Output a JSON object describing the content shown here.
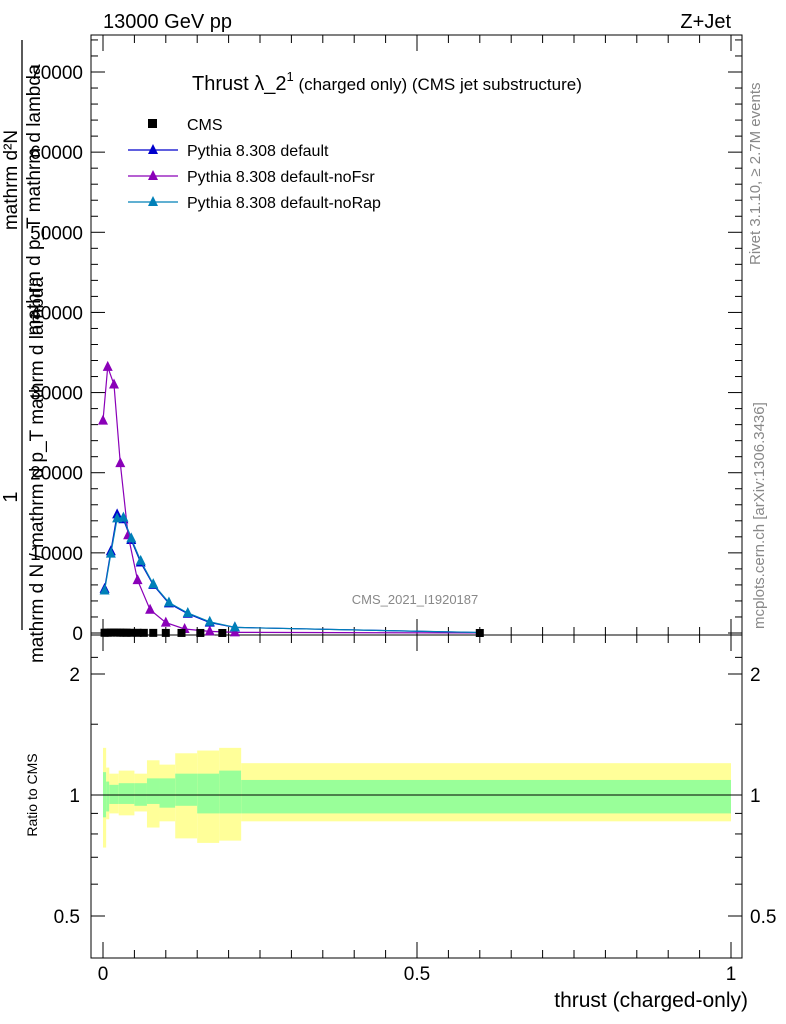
{
  "header": {
    "left": "13000 GeV pp",
    "right": "Z+Jet"
  },
  "title": {
    "main": "Thrust λ_2",
    "sup": "1",
    "rest": " (charged only) (CMS jet substructure)"
  },
  "side_labels": {
    "top": "Rivet 3.1.10, ≥ 2.7M events",
    "bottom": "mcplots.cern.ch [arXiv:1306.3436]"
  },
  "watermark": "CMS_2021_I1920187",
  "main_ylabel": {
    "numerator": "1",
    "fraction_top": "mathrm d²N",
    "fraction_bottom": "mathrm d p_T mathrm d lambda",
    "denominator": "mathrm d N / mathrm d p_T mathrm d lambda"
  },
  "ratio_ylabel": "Ratio to CMS",
  "xlabel": "thrust (charged-only)",
  "legend": [
    {
      "label": "CMS",
      "marker": "square",
      "color": "#000000"
    },
    {
      "label": "Pythia 8.308 default",
      "marker": "triangle",
      "color": "#0000cc"
    },
    {
      "label": "Pythia 8.308 default-noFsr",
      "marker": "triangle",
      "color": "#8a00b8"
    },
    {
      "label": "Pythia 8.308 default-noRap",
      "marker": "triangle",
      "color": "#0080b8"
    }
  ],
  "chart_data": {
    "type": "line",
    "x_axis": {
      "range": [
        -0.02,
        1.0
      ],
      "ticks": [
        0,
        0.5,
        1
      ],
      "tick_labels": [
        "0",
        "0.5",
        "1"
      ]
    },
    "main_y_axis": {
      "range": [
        0,
        75000
      ],
      "ticks": [
        0,
        10000,
        20000,
        30000,
        40000,
        50000,
        60000,
        70000
      ],
      "tick_labels": [
        "0",
        "10000",
        "20000",
        "30000",
        "40000",
        "50000",
        "60000",
        "70000"
      ]
    },
    "ratio_y_axis": {
      "scale": "log",
      "range": [
        0.4,
        2.4
      ],
      "ticks": [
        0.5,
        1,
        2
      ],
      "tick_labels": [
        "0.5",
        "1",
        "2"
      ]
    },
    "cms": {
      "x": [
        0.0025,
        0.0075,
        0.0125,
        0.0175,
        0.0225,
        0.0275,
        0.0325,
        0.0375,
        0.045,
        0.055,
        0.065,
        0.08,
        0.1,
        0.125,
        0.155,
        0.19,
        0.6
      ],
      "y": [
        30,
        40,
        50,
        60,
        50,
        45,
        40,
        35,
        30,
        25,
        20,
        15,
        10,
        8,
        5,
        3,
        1
      ]
    },
    "series": [
      {
        "name": "Pythia 8.308 default",
        "color": "#0000cc",
        "x": [
          0.0025,
          0.0125,
          0.0225,
          0.0325,
          0.045,
          0.06,
          0.08,
          0.105,
          0.135,
          0.17,
          0.21,
          0.6
        ],
        "y": [
          5500,
          10200,
          14800,
          14200,
          11600,
          8800,
          6000,
          3700,
          2400,
          1300,
          700,
          50
        ]
      },
      {
        "name": "Pythia 8.308 default-noFsr",
        "color": "#8a00b8",
        "x": [
          0.0,
          0.0075,
          0.0175,
          0.0275,
          0.04,
          0.055,
          0.075,
          0.1,
          0.13,
          0.17,
          0.21,
          0.6
        ],
        "y": [
          26500,
          33200,
          31000,
          21200,
          12200,
          6600,
          2900,
          1300,
          500,
          200,
          80,
          5
        ]
      },
      {
        "name": "Pythia 8.308 default-noRap",
        "color": "#0080b8",
        "x": [
          0.0025,
          0.0125,
          0.0225,
          0.0325,
          0.045,
          0.06,
          0.08,
          0.105,
          0.135,
          0.17,
          0.21,
          0.6
        ],
        "y": [
          5300,
          9900,
          14300,
          14400,
          11800,
          9000,
          6100,
          3800,
          2500,
          1400,
          700,
          60
        ]
      }
    ],
    "ratio_bands": {
      "edges": [
        0.0,
        0.005,
        0.01,
        0.025,
        0.05,
        0.07,
        0.09,
        0.115,
        0.15,
        0.185,
        0.22,
        1.0
      ],
      "stat_low": [
        0.88,
        0.91,
        0.95,
        0.95,
        0.94,
        0.95,
        0.93,
        0.94,
        0.9,
        0.9,
        0.9
      ],
      "stat_high": [
        1.14,
        1.08,
        1.06,
        1.07,
        1.07,
        1.1,
        1.1,
        1.13,
        1.13,
        1.15,
        1.09
      ],
      "total_low": [
        0.74,
        0.87,
        0.9,
        0.89,
        0.91,
        0.83,
        0.86,
        0.78,
        0.76,
        0.77,
        0.86
      ],
      "total_high": [
        1.31,
        1.17,
        1.13,
        1.15,
        1.13,
        1.22,
        1.19,
        1.27,
        1.29,
        1.31,
        1.2
      ],
      "stat_color": "#99ff99",
      "total_color": "#ffff99"
    }
  }
}
